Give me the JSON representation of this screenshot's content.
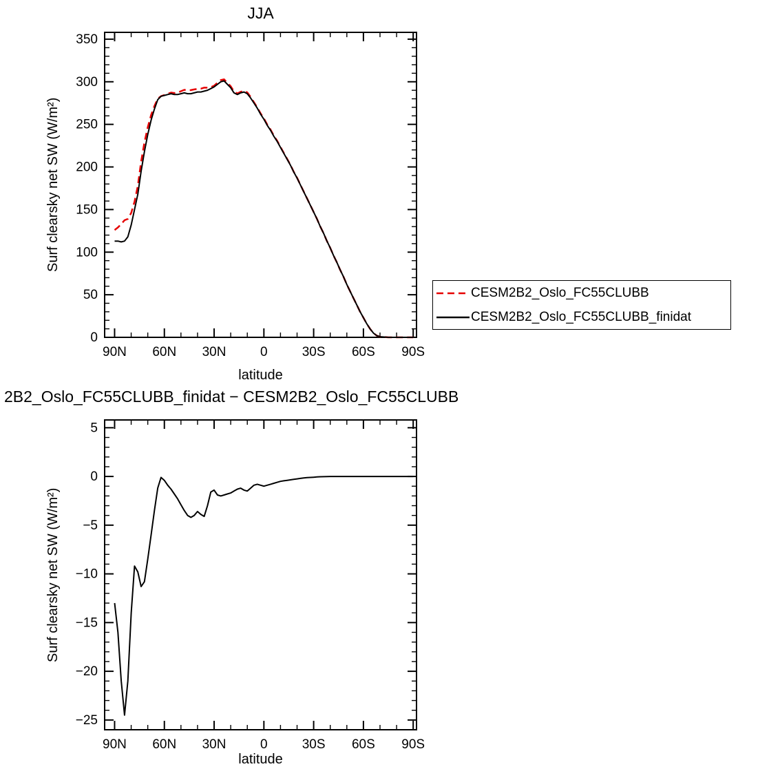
{
  "page": {
    "background": "#ffffff"
  },
  "legend": {
    "entries": [
      {
        "label": "CESM2B2_Oslo_FC55CLUBB",
        "color": "#e60000",
        "dash": "10,6"
      },
      {
        "label": "CESM2B2_Oslo_FC55CLUBB_finidat",
        "color": "#000000",
        "dash": null
      }
    ]
  },
  "chart_data": [
    {
      "type": "line",
      "title": "JJA",
      "xlabel": "latitude",
      "ylabel": "Surf clearsky net SW (W/m²)",
      "x_range": [
        96,
        -92
      ],
      "y_range": [
        0,
        358
      ],
      "x_minor_step": 10,
      "y_minor_step": 10,
      "grid": false,
      "x_ticks": [
        {
          "v": 90,
          "label": "90N"
        },
        {
          "v": 60,
          "label": "60N"
        },
        {
          "v": 30,
          "label": "30N"
        },
        {
          "v": 0,
          "label": "0"
        },
        {
          "v": -30,
          "label": "30S"
        },
        {
          "v": -60,
          "label": "60S"
        },
        {
          "v": -90,
          "label": "90S"
        }
      ],
      "y_ticks": [
        {
          "v": 0,
          "label": "0"
        },
        {
          "v": 50,
          "label": "50"
        },
        {
          "v": 100,
          "label": "100"
        },
        {
          "v": 150,
          "label": "150"
        },
        {
          "v": 200,
          "label": "200"
        },
        {
          "v": 250,
          "label": "250"
        },
        {
          "v": 300,
          "label": "300"
        },
        {
          "v": 350,
          "label": "350"
        }
      ],
      "x": [
        90,
        88,
        86,
        84,
        82,
        80,
        78,
        76,
        74,
        72,
        70,
        68,
        66,
        64,
        62,
        60,
        58,
        56,
        54,
        52,
        50,
        48,
        46,
        44,
        42,
        40,
        38,
        36,
        34,
        32,
        30,
        28,
        26,
        24,
        22,
        20,
        18,
        16,
        14,
        12,
        10,
        8,
        6,
        4,
        2,
        0,
        -2,
        -4,
        -6,
        -8,
        -10,
        -12,
        -14,
        -16,
        -18,
        -20,
        -22,
        -24,
        -26,
        -28,
        -30,
        -32,
        -34,
        -36,
        -38,
        -40,
        -42,
        -44,
        -46,
        -48,
        -50,
        -52,
        -54,
        -56,
        -58,
        -60,
        -62,
        -64,
        -66,
        -68,
        -70,
        -75,
        -80,
        -85,
        -90
      ],
      "series": [
        {
          "name": "CESM2B2_Oslo_FC55CLUBB",
          "color": "#e60000",
          "dash": "10,6",
          "width": 2.5,
          "values": [
            126,
            129,
            133,
            137.5,
            139,
            146,
            159.2,
            177.8,
            206.3,
            228.8,
            246.5,
            261,
            271.5,
            280.2,
            283.1,
            284.4,
            285.9,
            287.3,
            286.8,
            287.3,
            288.9,
            290.5,
            290,
            290.2,
            291,
            291.6,
            291.9,
            293.1,
            293,
            293.6,
            295.4,
            298.9,
            302,
            302.9,
            298.8,
            294.7,
            288.5,
            286.3,
            288.2,
            289.4,
            287.5,
            282.2,
            275.9,
            269.8,
            262.9,
            257,
            249.9,
            243.8,
            236.7,
            230.6,
            223.5,
            216.5,
            209.4,
            202.4,
            194.3,
            187.3,
            179.2,
            171.2,
            163.1,
            155.1,
            147.1,
            139.1,
            130,
            122,
            113,
            105,
            96,
            88,
            79,
            71,
            62,
            54,
            46,
            38,
            30,
            23,
            16,
            10,
            5,
            2,
            0.7,
            0,
            0,
            0,
            0
          ]
        },
        {
          "name": "CESM2B2_Oslo_FC55CLUBB_finidat",
          "color": "#000000",
          "dash": null,
          "width": 2,
          "values": [
            113,
            113,
            112,
            113,
            118,
            132,
            150,
            168,
            195,
            218,
            238,
            255,
            268,
            279,
            283,
            284,
            285,
            286,
            285,
            285,
            286,
            287,
            286,
            286,
            287,
            288,
            288,
            289,
            290,
            292,
            294,
            297,
            300,
            301,
            297,
            293,
            287,
            285,
            287,
            288,
            286,
            281,
            275,
            269,
            262,
            256,
            249,
            243,
            236,
            230,
            223,
            216,
            209,
            202,
            194,
            187,
            179,
            171,
            163,
            155,
            147,
            139,
            130,
            122,
            113,
            105,
            96,
            88,
            79,
            71,
            62,
            54,
            46,
            38,
            30,
            23,
            16,
            10,
            5,
            2,
            0.7,
            0,
            0,
            0,
            0
          ]
        }
      ]
    },
    {
      "type": "line",
      "title": "2B2_Oslo_FC55CLUBB_finidat − CESM2B2_Oslo_FC55CLUBB",
      "xlabel": "latitude",
      "ylabel": "Surf clearsky net SW (W/m²)",
      "x_range": [
        96,
        -92
      ],
      "y_range": [
        -26,
        5.8
      ],
      "x_minor_step": 10,
      "y_minor_step": 1,
      "grid": false,
      "x_ticks": [
        {
          "v": 90,
          "label": "90N"
        },
        {
          "v": 60,
          "label": "60N"
        },
        {
          "v": 30,
          "label": "30N"
        },
        {
          "v": 0,
          "label": "0"
        },
        {
          "v": -30,
          "label": "30S"
        },
        {
          "v": -60,
          "label": "60S"
        },
        {
          "v": -90,
          "label": "90S"
        }
      ],
      "y_ticks": [
        {
          "v": -25,
          "label": "−25"
        },
        {
          "v": -20,
          "label": "−20"
        },
        {
          "v": -15,
          "label": "−15"
        },
        {
          "v": -10,
          "label": "−10"
        },
        {
          "v": -5,
          "label": "−5"
        },
        {
          "v": 0,
          "label": "0"
        },
        {
          "v": 5,
          "label": "5"
        }
      ],
      "x": [
        90,
        88,
        86,
        84,
        82,
        80,
        78,
        76,
        74,
        72,
        70,
        68,
        66,
        64,
        62,
        60,
        58,
        56,
        54,
        52,
        50,
        48,
        46,
        44,
        42,
        40,
        38,
        36,
        34,
        32,
        30,
        28,
        26,
        24,
        22,
        20,
        18,
        16,
        14,
        12,
        10,
        8,
        6,
        4,
        2,
        0,
        -2,
        -4,
        -6,
        -8,
        -10,
        -12,
        -14,
        -16,
        -18,
        -20,
        -22,
        -24,
        -26,
        -28,
        -30,
        -32,
        -34,
        -36,
        -38,
        -40,
        -42,
        -44,
        -46,
        -48,
        -50,
        -52,
        -54,
        -56,
        -58,
        -60,
        -62,
        -64,
        -66,
        -68,
        -70,
        -75,
        -80,
        -85,
        -90
      ],
      "series": [
        {
          "name": "CESM2B2_Oslo_FC55CLUBB_finidat − CESM2B2_Oslo_FC55CLUBB",
          "color": "#000000",
          "dash": null,
          "width": 2,
          "values": [
            -13,
            -16,
            -21,
            -24.5,
            -21,
            -14,
            -9.2,
            -9.8,
            -11.3,
            -10.8,
            -8.5,
            -6,
            -3.5,
            -1.2,
            -0.1,
            -0.4,
            -0.9,
            -1.3,
            -1.8,
            -2.3,
            -2.9,
            -3.5,
            -4,
            -4.2,
            -4,
            -3.6,
            -3.9,
            -4.1,
            -3,
            -1.6,
            -1.4,
            -1.9,
            -2,
            -1.9,
            -1.8,
            -1.7,
            -1.5,
            -1.3,
            -1.2,
            -1.4,
            -1.5,
            -1.2,
            -0.9,
            -0.8,
            -0.9,
            -1,
            -0.9,
            -0.8,
            -0.7,
            -0.6,
            -0.5,
            -0.45,
            -0.4,
            -0.35,
            -0.3,
            -0.25,
            -0.2,
            -0.15,
            -0.12,
            -0.1,
            -0.08,
            -0.05,
            -0.03,
            -0.02,
            -0.01,
            0,
            0,
            0,
            0,
            0,
            0,
            0,
            0,
            0,
            0,
            0,
            0,
            0,
            0,
            0,
            0,
            0,
            0,
            0,
            0
          ]
        }
      ]
    }
  ]
}
